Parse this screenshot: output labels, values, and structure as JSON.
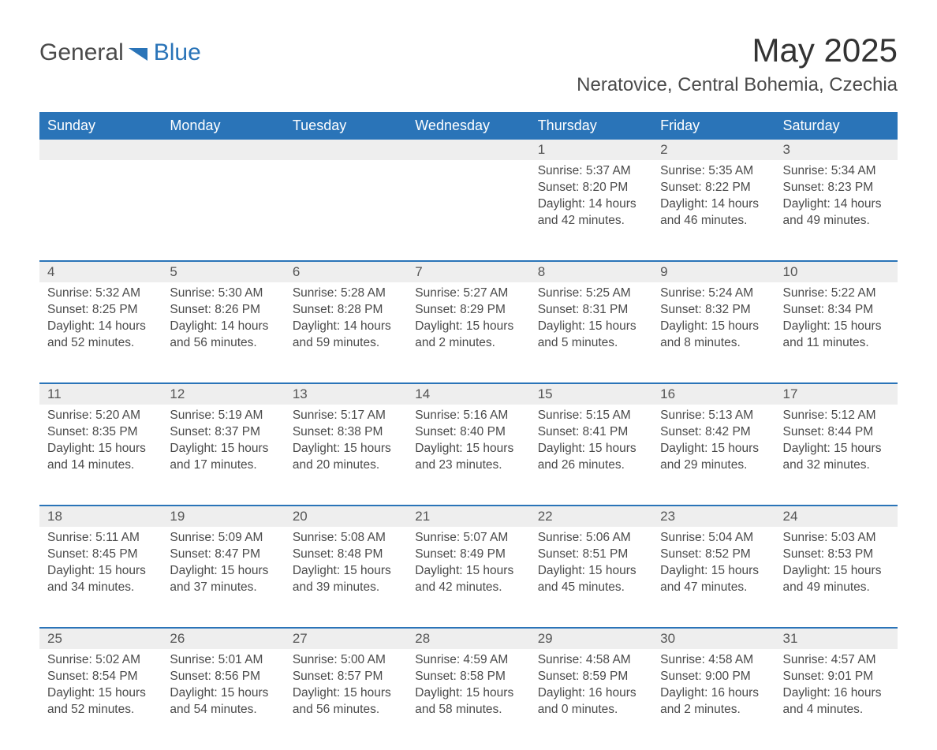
{
  "logo": {
    "word1": "General",
    "word2": "Blue"
  },
  "title": "May 2025",
  "location": "Neratovice, Central Bohemia, Czechia",
  "colors": {
    "brand_blue": "#2a74b8",
    "header_text": "#ffffff",
    "daynum_bg": "#eeeeee",
    "text": "#4a4a4a",
    "page_bg": "#ffffff"
  },
  "day_headers": [
    "Sunday",
    "Monday",
    "Tuesday",
    "Wednesday",
    "Thursday",
    "Friday",
    "Saturday"
  ],
  "weeks": [
    [
      null,
      null,
      null,
      null,
      {
        "n": "1",
        "sunrise": "5:37 AM",
        "sunset": "8:20 PM",
        "dl_h": 14,
        "dl_m": 42
      },
      {
        "n": "2",
        "sunrise": "5:35 AM",
        "sunset": "8:22 PM",
        "dl_h": 14,
        "dl_m": 46
      },
      {
        "n": "3",
        "sunrise": "5:34 AM",
        "sunset": "8:23 PM",
        "dl_h": 14,
        "dl_m": 49
      }
    ],
    [
      {
        "n": "4",
        "sunrise": "5:32 AM",
        "sunset": "8:25 PM",
        "dl_h": 14,
        "dl_m": 52
      },
      {
        "n": "5",
        "sunrise": "5:30 AM",
        "sunset": "8:26 PM",
        "dl_h": 14,
        "dl_m": 56
      },
      {
        "n": "6",
        "sunrise": "5:28 AM",
        "sunset": "8:28 PM",
        "dl_h": 14,
        "dl_m": 59
      },
      {
        "n": "7",
        "sunrise": "5:27 AM",
        "sunset": "8:29 PM",
        "dl_h": 15,
        "dl_m": 2
      },
      {
        "n": "8",
        "sunrise": "5:25 AM",
        "sunset": "8:31 PM",
        "dl_h": 15,
        "dl_m": 5
      },
      {
        "n": "9",
        "sunrise": "5:24 AM",
        "sunset": "8:32 PM",
        "dl_h": 15,
        "dl_m": 8
      },
      {
        "n": "10",
        "sunrise": "5:22 AM",
        "sunset": "8:34 PM",
        "dl_h": 15,
        "dl_m": 11
      }
    ],
    [
      {
        "n": "11",
        "sunrise": "5:20 AM",
        "sunset": "8:35 PM",
        "dl_h": 15,
        "dl_m": 14
      },
      {
        "n": "12",
        "sunrise": "5:19 AM",
        "sunset": "8:37 PM",
        "dl_h": 15,
        "dl_m": 17
      },
      {
        "n": "13",
        "sunrise": "5:17 AM",
        "sunset": "8:38 PM",
        "dl_h": 15,
        "dl_m": 20
      },
      {
        "n": "14",
        "sunrise": "5:16 AM",
        "sunset": "8:40 PM",
        "dl_h": 15,
        "dl_m": 23
      },
      {
        "n": "15",
        "sunrise": "5:15 AM",
        "sunset": "8:41 PM",
        "dl_h": 15,
        "dl_m": 26
      },
      {
        "n": "16",
        "sunrise": "5:13 AM",
        "sunset": "8:42 PM",
        "dl_h": 15,
        "dl_m": 29
      },
      {
        "n": "17",
        "sunrise": "5:12 AM",
        "sunset": "8:44 PM",
        "dl_h": 15,
        "dl_m": 32
      }
    ],
    [
      {
        "n": "18",
        "sunrise": "5:11 AM",
        "sunset": "8:45 PM",
        "dl_h": 15,
        "dl_m": 34
      },
      {
        "n": "19",
        "sunrise": "5:09 AM",
        "sunset": "8:47 PM",
        "dl_h": 15,
        "dl_m": 37
      },
      {
        "n": "20",
        "sunrise": "5:08 AM",
        "sunset": "8:48 PM",
        "dl_h": 15,
        "dl_m": 39
      },
      {
        "n": "21",
        "sunrise": "5:07 AM",
        "sunset": "8:49 PM",
        "dl_h": 15,
        "dl_m": 42
      },
      {
        "n": "22",
        "sunrise": "5:06 AM",
        "sunset": "8:51 PM",
        "dl_h": 15,
        "dl_m": 45
      },
      {
        "n": "23",
        "sunrise": "5:04 AM",
        "sunset": "8:52 PM",
        "dl_h": 15,
        "dl_m": 47
      },
      {
        "n": "24",
        "sunrise": "5:03 AM",
        "sunset": "8:53 PM",
        "dl_h": 15,
        "dl_m": 49
      }
    ],
    [
      {
        "n": "25",
        "sunrise": "5:02 AM",
        "sunset": "8:54 PM",
        "dl_h": 15,
        "dl_m": 52
      },
      {
        "n": "26",
        "sunrise": "5:01 AM",
        "sunset": "8:56 PM",
        "dl_h": 15,
        "dl_m": 54
      },
      {
        "n": "27",
        "sunrise": "5:00 AM",
        "sunset": "8:57 PM",
        "dl_h": 15,
        "dl_m": 56
      },
      {
        "n": "28",
        "sunrise": "4:59 AM",
        "sunset": "8:58 PM",
        "dl_h": 15,
        "dl_m": 58
      },
      {
        "n": "29",
        "sunrise": "4:58 AM",
        "sunset": "8:59 PM",
        "dl_h": 16,
        "dl_m": 0
      },
      {
        "n": "30",
        "sunrise": "4:58 AM",
        "sunset": "9:00 PM",
        "dl_h": 16,
        "dl_m": 2
      },
      {
        "n": "31",
        "sunrise": "4:57 AM",
        "sunset": "9:01 PM",
        "dl_h": 16,
        "dl_m": 4
      }
    ]
  ],
  "labels": {
    "sunrise": "Sunrise:",
    "sunset": "Sunset:",
    "daylight_prefix": "Daylight:",
    "hours_word": "hours",
    "and_word": "and",
    "minutes_word": "minutes."
  }
}
